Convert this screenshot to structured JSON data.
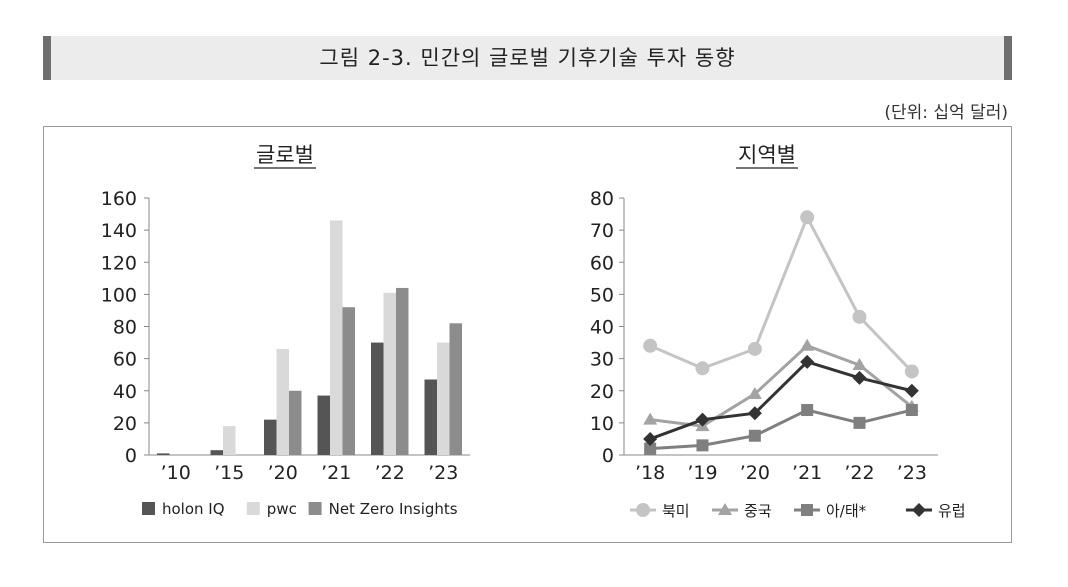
{
  "figure": {
    "title": "그림 2-3. 민간의 글로벌 기후기술 투자 동향",
    "unit": "(단위: 십억 달러)"
  },
  "chart_data": [
    {
      "type": "bar",
      "title": "글로벌",
      "categories": [
        "’10",
        "’15",
        "’20",
        "’21",
        "’22",
        "’23"
      ],
      "ylim": [
        0,
        160
      ],
      "yticks": [
        0,
        20,
        40,
        60,
        80,
        100,
        120,
        140,
        160
      ],
      "series": [
        {
          "name": "holon IQ",
          "color": "#555555",
          "values": [
            1,
            3,
            22,
            37,
            70,
            47
          ]
        },
        {
          "name": "pwc",
          "color": "#d9d9d9",
          "values": [
            0,
            18,
            66,
            146,
            101,
            70
          ]
        },
        {
          "name": "Net Zero Insights",
          "color": "#8c8c8c",
          "values": [
            0,
            0,
            40,
            92,
            104,
            82
          ]
        }
      ]
    },
    {
      "type": "line",
      "title": "지역별",
      "categories": [
        "’18",
        "’19",
        "’20",
        "’21",
        "’22",
        "’23"
      ],
      "ylim": [
        0,
        80
      ],
      "yticks": [
        0,
        10,
        20,
        30,
        40,
        50,
        60,
        70,
        80
      ],
      "series": [
        {
          "name": "북미",
          "color": "#c4c4c4",
          "marker": "circle",
          "values": [
            34,
            27,
            33,
            74,
            43,
            26
          ]
        },
        {
          "name": "중국",
          "color": "#a3a3a3",
          "marker": "triangle",
          "values": [
            11,
            9,
            19,
            34,
            28,
            15
          ]
        },
        {
          "name": "아/태*",
          "color": "#7f7f7f",
          "marker": "square",
          "values": [
            2,
            3,
            6,
            14,
            10,
            14
          ]
        },
        {
          "name": "유럽",
          "color": "#333333",
          "marker": "diamond",
          "values": [
            5,
            11,
            13,
            29,
            24,
            20
          ]
        }
      ]
    }
  ]
}
